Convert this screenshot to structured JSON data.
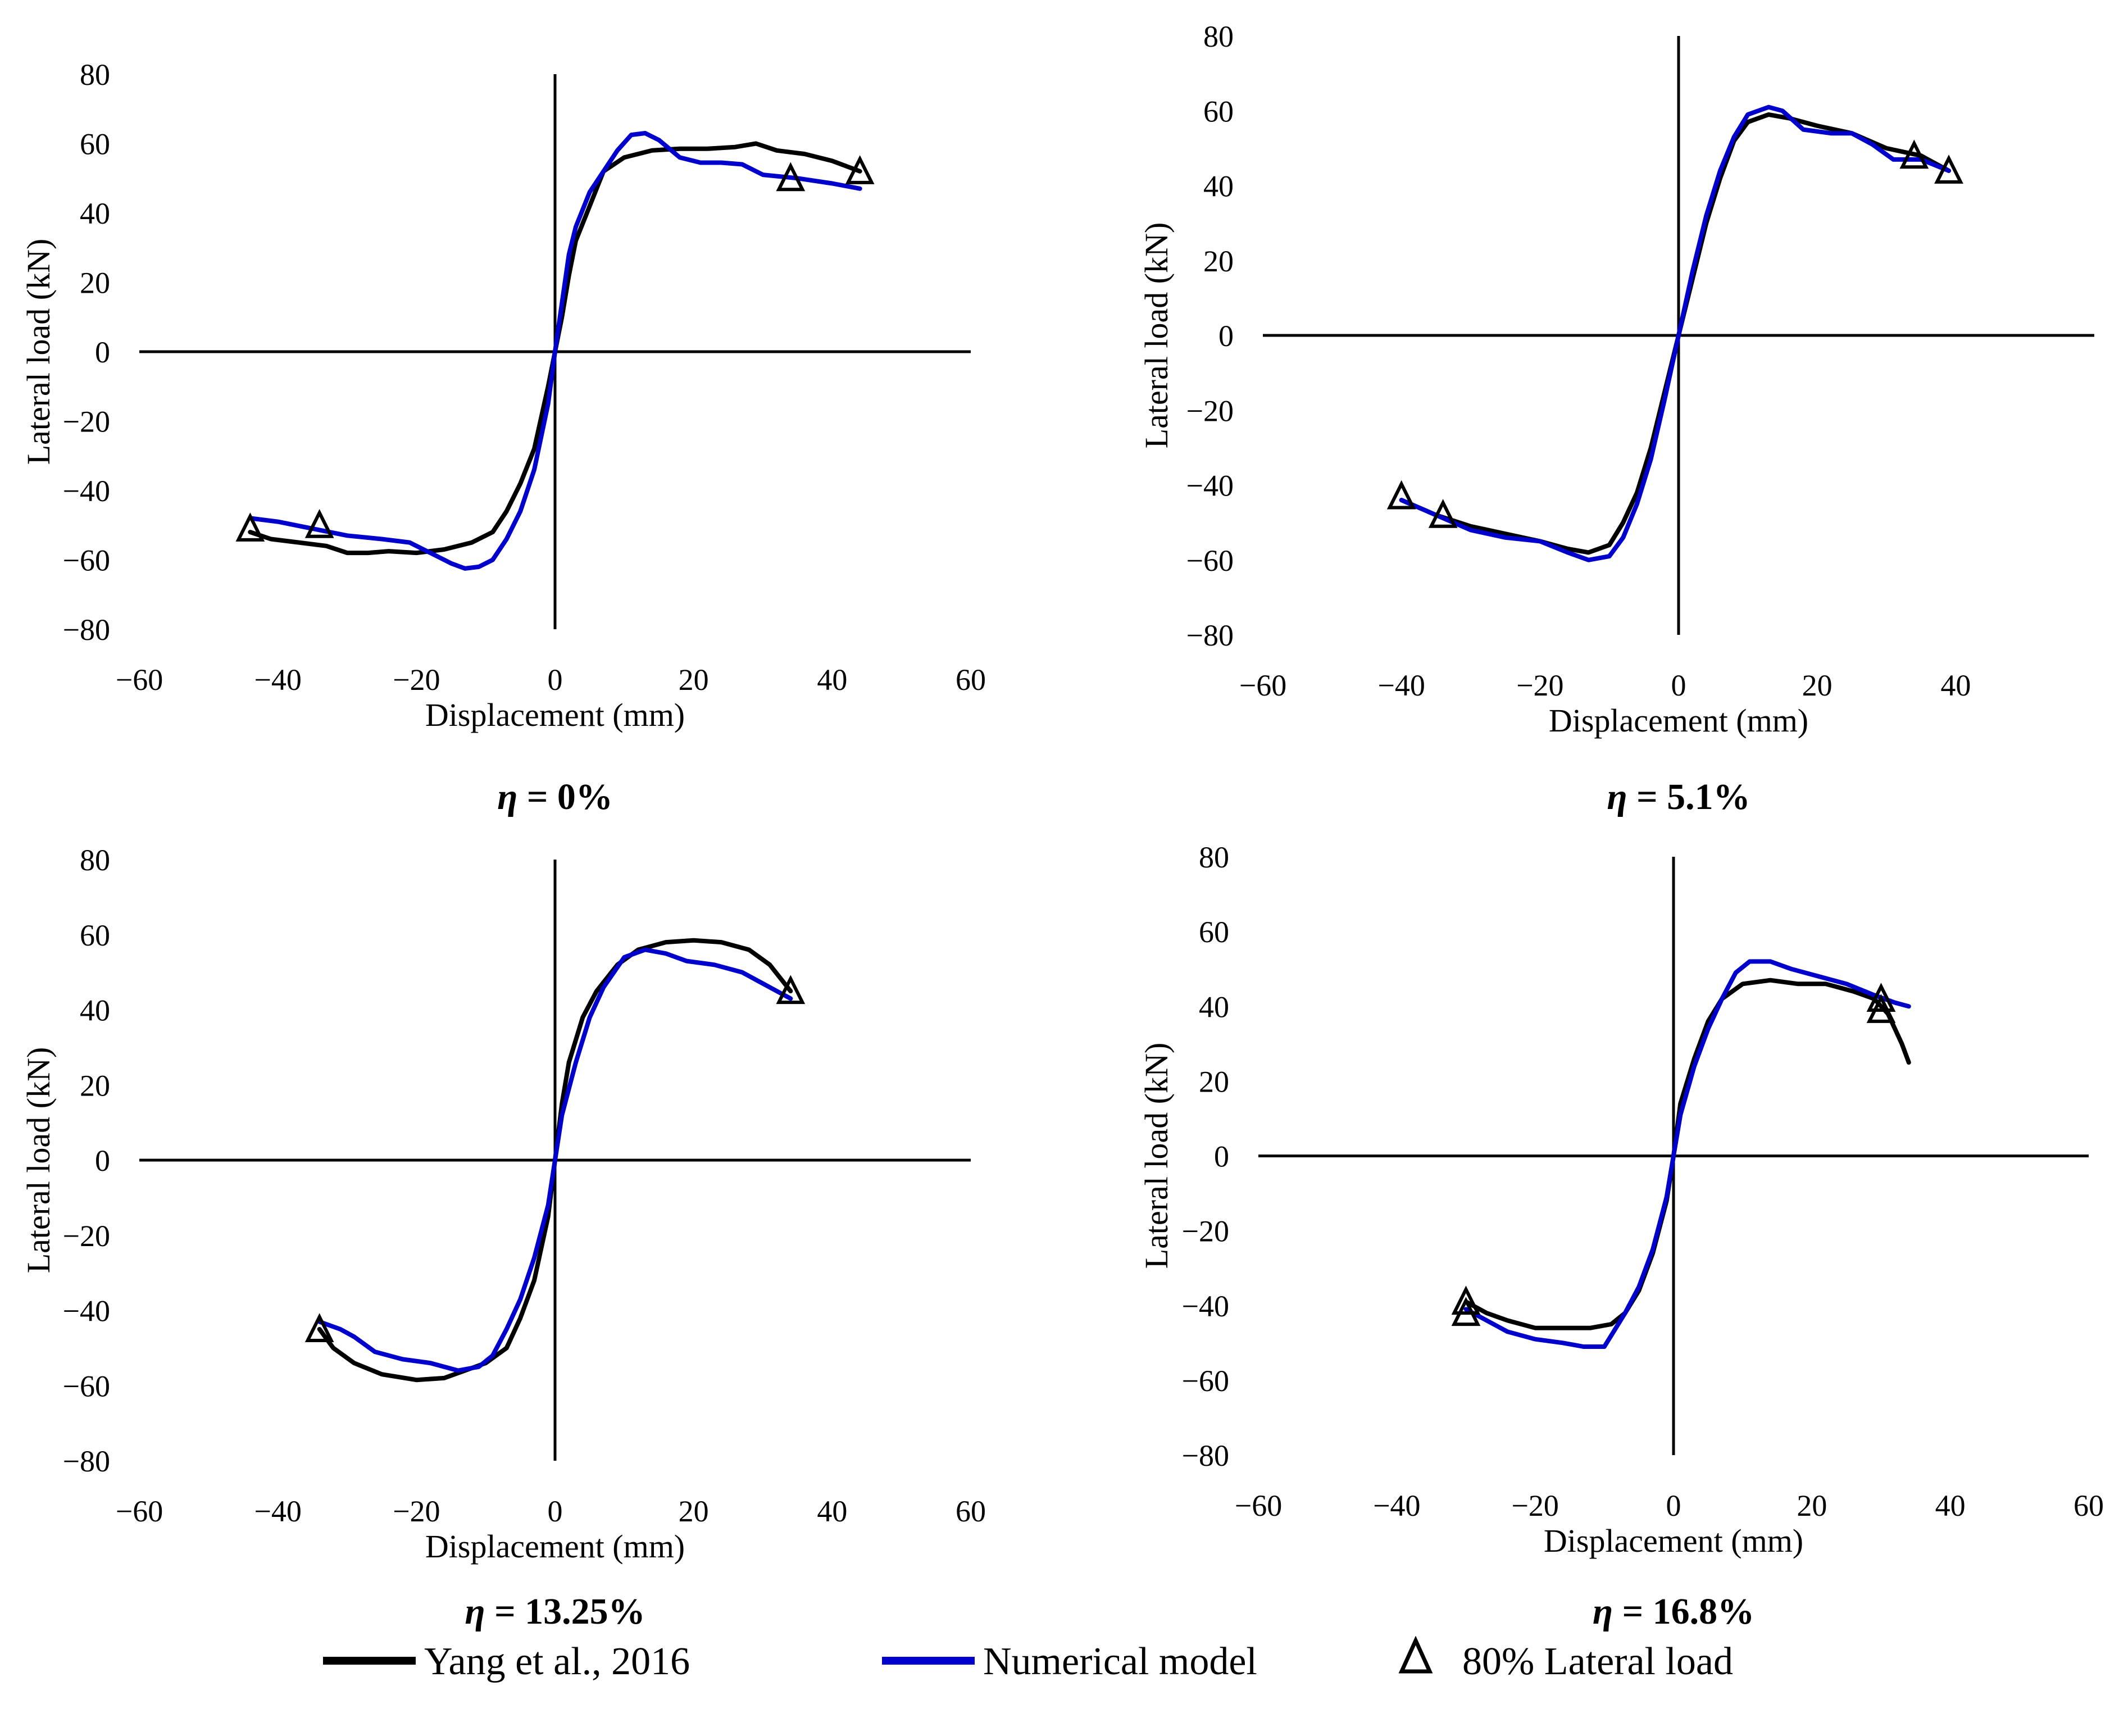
{
  "colors": {
    "experimental": "#000000",
    "numerical": "#0000cc",
    "axis": "#000000",
    "marker": "#000000"
  },
  "legend": {
    "experimental_label": "Yang et al., 2016",
    "numerical_label": "Numerical model",
    "marker_label": "80% Lateral load",
    "marker_symbol": "triangle-icon"
  },
  "chart_data": [
    {
      "type": "line",
      "title": "η = 0%",
      "title_symbol": "η",
      "title_value": " = 0%",
      "xlabel": "Displacement (mm)",
      "ylabel": "Lateral load (kN)",
      "xlim": [
        -60,
        60
      ],
      "ylim": [
        -80,
        80
      ],
      "xticks": [
        -60,
        -40,
        -20,
        0,
        20,
        40,
        60
      ],
      "yticks": [
        -80,
        -60,
        -40,
        -20,
        0,
        20,
        40,
        60,
        80
      ],
      "series": [
        {
          "name": "Yang et al., 2016",
          "points": [
            [
              -44,
              -52
            ],
            [
              -41,
              -54
            ],
            [
              -37,
              -55
            ],
            [
              -33,
              -56
            ],
            [
              -30,
              -58
            ],
            [
              -27,
              -58
            ],
            [
              -24,
              -57.5
            ],
            [
              -20,
              -58
            ],
            [
              -16,
              -57
            ],
            [
              -12,
              -55
            ],
            [
              -9,
              -52
            ],
            [
              -7,
              -46
            ],
            [
              -5,
              -38
            ],
            [
              -3,
              -28
            ],
            [
              -1,
              -10
            ],
            [
              0,
              0
            ],
            [
              1,
              10
            ],
            [
              2,
              22
            ],
            [
              3,
              32
            ],
            [
              5,
              42
            ],
            [
              7,
              52
            ],
            [
              10,
              56
            ],
            [
              14,
              58
            ],
            [
              18,
              58.5
            ],
            [
              22,
              58.5
            ],
            [
              26,
              59
            ],
            [
              29,
              60
            ],
            [
              32,
              58
            ],
            [
              36,
              57
            ],
            [
              40,
              55
            ],
            [
              44,
              52
            ]
          ]
        },
        {
          "name": "Numerical model",
          "points": [
            [
              -44,
              -48
            ],
            [
              -40,
              -49
            ],
            [
              -35,
              -51
            ],
            [
              -30,
              -53
            ],
            [
              -25,
              -54
            ],
            [
              -21,
              -55
            ],
            [
              -18,
              -58
            ],
            [
              -15,
              -61
            ],
            [
              -13,
              -62.5
            ],
            [
              -11,
              -62
            ],
            [
              -9,
              -60
            ],
            [
              -7,
              -54
            ],
            [
              -5,
              -46
            ],
            [
              -3,
              -34
            ],
            [
              -1,
              -15
            ],
            [
              0,
              0
            ],
            [
              1,
              14
            ],
            [
              2,
              28
            ],
            [
              3,
              36
            ],
            [
              5,
              46
            ],
            [
              7,
              52
            ],
            [
              9,
              58
            ],
            [
              11,
              62.5
            ],
            [
              13,
              63
            ],
            [
              15,
              61
            ],
            [
              18,
              56
            ],
            [
              21,
              54.5
            ],
            [
              24,
              54.5
            ],
            [
              27,
              54
            ],
            [
              30,
              51
            ],
            [
              35,
              50
            ],
            [
              40,
              48.5
            ],
            [
              44,
              47
            ]
          ]
        }
      ],
      "markers": [
        [
          -44,
          -51
        ],
        [
          -34,
          -50
        ],
        [
          34,
          50
        ],
        [
          44,
          52
        ]
      ]
    },
    {
      "type": "line",
      "title": "η = 5.1%",
      "title_symbol": "η",
      "title_value": " = 5.1%",
      "xlabel": "Displacement (mm)",
      "ylabel": "Lateral load (kN)",
      "xlim": [
        -60,
        60
      ],
      "ylim": [
        -80,
        80
      ],
      "xticks": [
        -60,
        -40,
        -20,
        0,
        20,
        40
      ],
      "yticks": [
        -80,
        -60,
        -40,
        -20,
        0,
        20,
        40,
        60,
        80
      ],
      "series": [
        {
          "name": "Yang et al., 2016",
          "points": [
            [
              -40,
              -44
            ],
            [
              -35,
              -48
            ],
            [
              -30,
              -51
            ],
            [
              -25,
              -53
            ],
            [
              -20,
              -55
            ],
            [
              -16,
              -57
            ],
            [
              -13,
              -58
            ],
            [
              -10,
              -56
            ],
            [
              -8,
              -50
            ],
            [
              -6,
              -42
            ],
            [
              -4,
              -30
            ],
            [
              -2,
              -15
            ],
            [
              0,
              0
            ],
            [
              2,
              15
            ],
            [
              4,
              30
            ],
            [
              6,
              42
            ],
            [
              8,
              52
            ],
            [
              10,
              57
            ],
            [
              13,
              59
            ],
            [
              16,
              58
            ],
            [
              20,
              56
            ],
            [
              25,
              54
            ],
            [
              30,
              50
            ],
            [
              35,
              48
            ],
            [
              39,
              44
            ]
          ]
        },
        {
          "name": "Numerical model",
          "points": [
            [
              -40,
              -44
            ],
            [
              -35,
              -48
            ],
            [
              -30,
              -52
            ],
            [
              -25,
              -54
            ],
            [
              -20,
              -55
            ],
            [
              -16,
              -58
            ],
            [
              -13,
              -60
            ],
            [
              -10,
              -59
            ],
            [
              -8,
              -54
            ],
            [
              -6,
              -45
            ],
            [
              -4,
              -33
            ],
            [
              -2,
              -17
            ],
            [
              0,
              0
            ],
            [
              2,
              17
            ],
            [
              4,
              32
            ],
            [
              6,
              44
            ],
            [
              8,
              53
            ],
            [
              10,
              59
            ],
            [
              13,
              61
            ],
            [
              15,
              60
            ],
            [
              18,
              55
            ],
            [
              22,
              54
            ],
            [
              25,
              54
            ],
            [
              28,
              51
            ],
            [
              31,
              47
            ],
            [
              35,
              47
            ],
            [
              39,
              44
            ]
          ]
        }
      ],
      "markers": [
        [
          -40,
          -43
        ],
        [
          -34,
          -48
        ],
        [
          34,
          48
        ],
        [
          39,
          44
        ]
      ]
    },
    {
      "type": "line",
      "title": "η = 13.25%",
      "title_symbol": "η",
      "title_value": " = 13.25%",
      "xlabel": "Displacement (mm)",
      "ylabel": "Lateral load (kN)",
      "xlim": [
        -60,
        60
      ],
      "ylim": [
        -80,
        80
      ],
      "xticks": [
        -60,
        -40,
        -20,
        0,
        20,
        40,
        60
      ],
      "yticks": [
        -80,
        -60,
        -40,
        -20,
        0,
        20,
        40,
        60,
        80
      ],
      "series": [
        {
          "name": "Yang et al., 2016",
          "points": [
            [
              -34,
              -45
            ],
            [
              -32,
              -50
            ],
            [
              -29,
              -54
            ],
            [
              -25,
              -57
            ],
            [
              -20,
              -58.5
            ],
            [
              -16,
              -58
            ],
            [
              -13,
              -56
            ],
            [
              -10,
              -54
            ],
            [
              -7,
              -50
            ],
            [
              -5,
              -42
            ],
            [
              -3,
              -32
            ],
            [
              -1,
              -15
            ],
            [
              0,
              0
            ],
            [
              1,
              15
            ],
            [
              2,
              26
            ],
            [
              4,
              38
            ],
            [
              6,
              45
            ],
            [
              9,
              52
            ],
            [
              12,
              56
            ],
            [
              16,
              58
            ],
            [
              20,
              58.5
            ],
            [
              24,
              58
            ],
            [
              28,
              56
            ],
            [
              31,
              52
            ],
            [
              34,
              45
            ]
          ]
        },
        {
          "name": "Numerical model",
          "points": [
            [
              -34,
              -43
            ],
            [
              -31,
              -45
            ],
            [
              -29,
              -47
            ],
            [
              -26,
              -51
            ],
            [
              -22,
              -53
            ],
            [
              -18,
              -54
            ],
            [
              -14,
              -56
            ],
            [
              -11,
              -55
            ],
            [
              -9,
              -52
            ],
            [
              -7,
              -45
            ],
            [
              -5,
              -37
            ],
            [
              -3,
              -26
            ],
            [
              -1,
              -12
            ],
            [
              0,
              0
            ],
            [
              1,
              12
            ],
            [
              3,
              26
            ],
            [
              5,
              38
            ],
            [
              7,
              46
            ],
            [
              10,
              54
            ],
            [
              13,
              56
            ],
            [
              16,
              55
            ],
            [
              19,
              53
            ],
            [
              23,
              52
            ],
            [
              27,
              50
            ],
            [
              30,
              47
            ],
            [
              34,
              43
            ]
          ]
        }
      ],
      "markers": [
        [
          -34,
          -45
        ],
        [
          34,
          45
        ]
      ]
    },
    {
      "type": "line",
      "title": "η = 16.8%",
      "title_symbol": "η",
      "title_value": " = 16.8%",
      "xlabel": "Displacement (mm)",
      "ylabel": "Lateral load (kN)",
      "xlim": [
        -60,
        60
      ],
      "ylim": [
        -80,
        80
      ],
      "xticks": [
        -60,
        -40,
        -20,
        0,
        20,
        40,
        60
      ],
      "yticks": [
        -80,
        -60,
        -40,
        -20,
        0,
        20,
        40,
        60,
        80
      ],
      "series": [
        {
          "name": "Yang et al., 2016",
          "points": [
            [
              -30,
              -39
            ],
            [
              -27,
              -42
            ],
            [
              -24,
              -44
            ],
            [
              -20,
              -46
            ],
            [
              -16,
              -46
            ],
            [
              -12,
              -46
            ],
            [
              -9,
              -45
            ],
            [
              -7,
              -42
            ],
            [
              -5,
              -36
            ],
            [
              -3,
              -26
            ],
            [
              -1,
              -12
            ],
            [
              0,
              0
            ],
            [
              1,
              14
            ],
            [
              3,
              26
            ],
            [
              5,
              36
            ],
            [
              7,
              42
            ],
            [
              10,
              46
            ],
            [
              14,
              47
            ],
            [
              18,
              46
            ],
            [
              22,
              46
            ],
            [
              26,
              44
            ],
            [
              29,
              42
            ],
            [
              31,
              38
            ],
            [
              33,
              30
            ],
            [
              34,
              25
            ]
          ]
        },
        {
          "name": "Numerical model",
          "points": [
            [
              -30,
              -41
            ],
            [
              -27,
              -44
            ],
            [
              -24,
              -47
            ],
            [
              -20,
              -49
            ],
            [
              -16,
              -50
            ],
            [
              -13,
              -51
            ],
            [
              -10,
              -51
            ],
            [
              -9,
              -48
            ],
            [
              -7,
              -42
            ],
            [
              -5,
              -35
            ],
            [
              -3,
              -25
            ],
            [
              -1,
              -11
            ],
            [
              0,
              0
            ],
            [
              1,
              11
            ],
            [
              3,
              24
            ],
            [
              5,
              34
            ],
            [
              7,
              42
            ],
            [
              9,
              49
            ],
            [
              11,
              52
            ],
            [
              14,
              52
            ],
            [
              17,
              50
            ],
            [
              21,
              48
            ],
            [
              25,
              46
            ],
            [
              29,
              43
            ],
            [
              32,
              41
            ],
            [
              34,
              40
            ]
          ]
        }
      ],
      "markers": [
        [
          -30,
          -39
        ],
        [
          -30,
          -42
        ],
        [
          30,
          42
        ],
        [
          30,
          39
        ]
      ]
    }
  ]
}
